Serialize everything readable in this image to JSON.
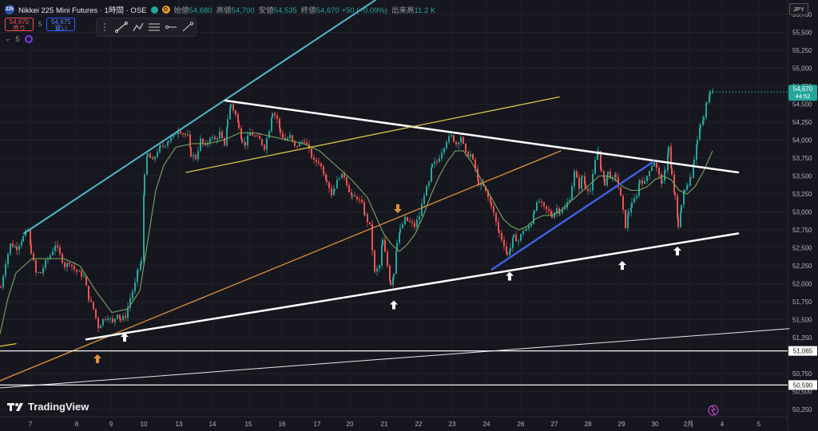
{
  "header": {
    "symbol_badge": "225",
    "title": "Nikkei 225 Mini Futures · 1時間 · OSE",
    "mode_badge": "D",
    "ohlc": [
      {
        "label": "始値",
        "value": "54,680"
      },
      {
        "label": "高値",
        "value": "54,700"
      },
      {
        "label": "安値",
        "value": "54,535"
      },
      {
        "label": "終値",
        "value": "54,670 +50 (+0.09%)"
      },
      {
        "label": "出来高",
        "value": "11.2 K"
      }
    ]
  },
  "trade": {
    "sell_price": "54,670",
    "sell_label": "売り",
    "spread": "5",
    "buy_price": "54,675",
    "buy_label": "買い"
  },
  "indicator": {
    "count": "5"
  },
  "currency": "JPY",
  "brand": "TradingView",
  "colors": {
    "background": "#16161f",
    "up": "#26a69a",
    "down": "#ef5350",
    "ma": "#7aa860",
    "cyan_line": "#4fb9c9",
    "yellow_line": "#d4c645",
    "orange_line": "#e0913a",
    "blue_line": "#3f5fe0",
    "trend_white": "#ffffff",
    "price_tag": "#26a69a"
  },
  "chart_data": {
    "type": "candlestick",
    "y_ticks": [
      "55,750",
      "55,500",
      "55,250",
      "55,000",
      "54,750",
      "54,500",
      "54,250",
      "54,000",
      "53,750",
      "53,500",
      "53,250",
      "53,000",
      "52,750",
      "52,500",
      "52,250",
      "52,000",
      "51,750",
      "51,500",
      "51,250",
      "50,750",
      "50,500",
      "50,250"
    ],
    "y_tick_values": [
      55750,
      55500,
      55250,
      55000,
      54750,
      54500,
      54250,
      54000,
      53750,
      53500,
      53250,
      53000,
      52750,
      52500,
      52250,
      52000,
      51750,
      51500,
      51250,
      50750,
      50500,
      50250
    ],
    "x_ticks": [
      "7",
      "8",
      "9",
      "10",
      "13",
      "14",
      "15",
      "16",
      "17",
      "20",
      "21",
      "22",
      "23",
      "24",
      "26",
      "27",
      "28",
      "29",
      "30",
      "2月",
      "4",
      "5"
    ],
    "ylim": [
      50150,
      55950
    ],
    "price_tag": {
      "price": "54,670",
      "countdown": "44:52",
      "value": 54670
    },
    "horizontal_levels": [
      {
        "label": "51,065",
        "value": 51065
      },
      {
        "label": "50,590",
        "value": 50590
      }
    ],
    "path": [
      [
        0,
        51950
      ],
      [
        6,
        52300
      ],
      [
        12,
        52550
      ],
      [
        20,
        52500
      ],
      [
        28,
        52650
      ],
      [
        34,
        52750
      ],
      [
        38,
        52450
      ],
      [
        44,
        52150
      ],
      [
        50,
        52150
      ],
      [
        56,
        52300
      ],
      [
        62,
        52400
      ],
      [
        68,
        52550
      ],
      [
        74,
        52400
      ],
      [
        80,
        52250
      ],
      [
        86,
        52300
      ],
      [
        92,
        52200
      ],
      [
        98,
        52150
      ],
      [
        104,
        52100
      ],
      [
        110,
        51800
      ],
      [
        116,
        51650
      ],
      [
        122,
        51400
      ],
      [
        128,
        51500
      ],
      [
        134,
        51550
      ],
      [
        140,
        51450
      ],
      [
        146,
        51600
      ],
      [
        150,
        51500
      ],
      [
        156,
        51550
      ],
      [
        162,
        51800
      ],
      [
        168,
        52000
      ],
      [
        172,
        52200
      ],
      [
        176,
        52300
      ],
      [
        180,
        53550
      ],
      [
        184,
        53800
      ],
      [
        190,
        53700
      ],
      [
        196,
        53850
      ],
      [
        200,
        53900
      ],
      [
        206,
        53950
      ],
      [
        210,
        54000
      ],
      [
        216,
        54050
      ],
      [
        222,
        54150
      ],
      [
        228,
        54100
      ],
      [
        234,
        54050
      ],
      [
        238,
        53800
      ],
      [
        244,
        53750
      ],
      [
        250,
        54000
      ],
      [
        256,
        53900
      ],
      [
        262,
        54050
      ],
      [
        268,
        54000
      ],
      [
        274,
        54100
      ],
      [
        280,
        53900
      ],
      [
        284,
        54300
      ],
      [
        288,
        54500
      ],
      [
        294,
        54350
      ],
      [
        298,
        54200
      ],
      [
        302,
        54000
      ],
      [
        306,
        53950
      ],
      [
        312,
        54100
      ],
      [
        318,
        54050
      ],
      [
        324,
        54000
      ],
      [
        330,
        53900
      ],
      [
        336,
        54150
      ],
      [
        340,
        54400
      ],
      [
        346,
        54300
      ],
      [
        350,
        54100
      ],
      [
        356,
        54000
      ],
      [
        362,
        54050
      ],
      [
        368,
        53900
      ],
      [
        374,
        53950
      ],
      [
        380,
        54000
      ],
      [
        386,
        53850
      ],
      [
        392,
        53700
      ],
      [
        398,
        53700
      ],
      [
        404,
        53550
      ],
      [
        408,
        53450
      ],
      [
        414,
        53250
      ],
      [
        418,
        53350
      ],
      [
        424,
        53500
      ],
      [
        430,
        53500
      ],
      [
        436,
        53300
      ],
      [
        440,
        53200
      ],
      [
        446,
        53200
      ],
      [
        452,
        53100
      ],
      [
        456,
        52950
      ],
      [
        462,
        52800
      ],
      [
        468,
        52150
      ],
      [
        474,
        52250
      ],
      [
        478,
        52600
      ],
      [
        484,
        52250
      ],
      [
        488,
        52000
      ],
      [
        492,
        52150
      ],
      [
        496,
        52600
      ],
      [
        500,
        52750
      ],
      [
        506,
        52900
      ],
      [
        512,
        52850
      ],
      [
        518,
        52800
      ],
      [
        524,
        52950
      ],
      [
        530,
        53250
      ],
      [
        536,
        53400
      ],
      [
        540,
        53650
      ],
      [
        546,
        53700
      ],
      [
        552,
        53850
      ],
      [
        558,
        54000
      ],
      [
        564,
        54050
      ],
      [
        570,
        53950
      ],
      [
        576,
        54050
      ],
      [
        582,
        53800
      ],
      [
        588,
        53800
      ],
      [
        594,
        53600
      ],
      [
        598,
        53400
      ],
      [
        604,
        53350
      ],
      [
        610,
        53200
      ],
      [
        614,
        53100
      ],
      [
        620,
        52850
      ],
      [
        624,
        52700
      ],
      [
        630,
        52550
      ],
      [
        634,
        52400
      ],
      [
        638,
        52500
      ],
      [
        642,
        52650
      ],
      [
        648,
        52600
      ],
      [
        654,
        52750
      ],
      [
        658,
        52750
      ],
      [
        664,
        52850
      ],
      [
        668,
        53050
      ],
      [
        674,
        53150
      ],
      [
        680,
        53050
      ],
      [
        686,
        53000
      ],
      [
        690,
        52950
      ],
      [
        696,
        53050
      ],
      [
        700,
        53000
      ],
      [
        706,
        53050
      ],
      [
        712,
        53200
      ],
      [
        718,
        53550
      ],
      [
        724,
        53350
      ],
      [
        728,
        53500
      ],
      [
        732,
        53350
      ],
      [
        738,
        53300
      ],
      [
        744,
        53700
      ],
      [
        748,
        53850
      ],
      [
        752,
        53550
      ],
      [
        756,
        53400
      ],
      [
        760,
        53550
      ],
      [
        766,
        53450
      ],
      [
        770,
        53500
      ],
      [
        776,
        53200
      ],
      [
        782,
        52800
      ],
      [
        786,
        53000
      ],
      [
        790,
        53100
      ],
      [
        796,
        53250
      ],
      [
        800,
        53450
      ],
      [
        806,
        53400
      ],
      [
        812,
        53600
      ],
      [
        818,
        53700
      ],
      [
        824,
        53500
      ],
      [
        828,
        53400
      ],
      [
        832,
        53600
      ],
      [
        836,
        53900
      ],
      [
        840,
        53500
      ],
      [
        844,
        53200
      ],
      [
        848,
        52800
      ],
      [
        852,
        53100
      ],
      [
        856,
        53300
      ],
      [
        860,
        53400
      ],
      [
        864,
        53500
      ],
      [
        868,
        53750
      ],
      [
        872,
        54000
      ],
      [
        876,
        54200
      ],
      [
        880,
        54300
      ],
      [
        884,
        54550
      ],
      [
        888,
        54700
      ],
      [
        892,
        54670
      ]
    ],
    "ma_path": [
      [
        0,
        51300
      ],
      [
        10,
        51800
      ],
      [
        20,
        52150
      ],
      [
        40,
        52350
      ],
      [
        60,
        52350
      ],
      [
        80,
        52350
      ],
      [
        100,
        52250
      ],
      [
        120,
        51900
      ],
      [
        140,
        51600
      ],
      [
        160,
        51650
      ],
      [
        175,
        51900
      ],
      [
        185,
        52600
      ],
      [
        195,
        53300
      ],
      [
        205,
        53650
      ],
      [
        220,
        53900
      ],
      [
        240,
        53950
      ],
      [
        260,
        53950
      ],
      [
        280,
        54000
      ],
      [
        300,
        54100
      ],
      [
        320,
        54100
      ],
      [
        340,
        54050
      ],
      [
        360,
        54000
      ],
      [
        380,
        53950
      ],
      [
        400,
        53850
      ],
      [
        420,
        53650
      ],
      [
        440,
        53450
      ],
      [
        460,
        53200
      ],
      [
        470,
        52950
      ],
      [
        480,
        52700
      ],
      [
        490,
        52550
      ],
      [
        500,
        52450
      ],
      [
        510,
        52550
      ],
      [
        520,
        52700
      ],
      [
        530,
        52950
      ],
      [
        540,
        53250
      ],
      [
        550,
        53500
      ],
      [
        560,
        53700
      ],
      [
        570,
        53850
      ],
      [
        580,
        53850
      ],
      [
        590,
        53700
      ],
      [
        600,
        53500
      ],
      [
        610,
        53300
      ],
      [
        620,
        53100
      ],
      [
        630,
        52900
      ],
      [
        640,
        52800
      ],
      [
        650,
        52750
      ],
      [
        660,
        52800
      ],
      [
        670,
        52900
      ],
      [
        680,
        52950
      ],
      [
        690,
        52950
      ],
      [
        700,
        53000
      ],
      [
        710,
        53100
      ],
      [
        720,
        53200
      ],
      [
        730,
        53300
      ],
      [
        740,
        53400
      ],
      [
        750,
        53500
      ],
      [
        760,
        53500
      ],
      [
        770,
        53450
      ],
      [
        780,
        53350
      ],
      [
        790,
        53300
      ],
      [
        800,
        53300
      ],
      [
        810,
        53350
      ],
      [
        820,
        53450
      ],
      [
        830,
        53500
      ],
      [
        840,
        53450
      ],
      [
        850,
        53300
      ],
      [
        860,
        53250
      ],
      [
        870,
        53350
      ],
      [
        880,
        53550
      ],
      [
        892,
        53850
      ]
    ],
    "drawings": [
      {
        "color": "cyan",
        "x1": 30,
        "y1": 52700,
        "x2": 470,
        "y2": 55950,
        "width": 2
      },
      {
        "color": "white",
        "x1": 282,
        "y1": 54550,
        "x2": 924,
        "y2": 53550,
        "width": 2.5
      },
      {
        "color": "yellow",
        "x1": 233,
        "y1": 53550,
        "x2": 700,
        "y2": 54600,
        "width": 1.3
      },
      {
        "color": "orange",
        "x1": 0,
        "y1": 50650,
        "x2": 702,
        "y2": 53850,
        "width": 1.3
      },
      {
        "color": "white",
        "x1": 108,
        "y1": 51225,
        "x2": 924,
        "y2": 52700,
        "width": 2.5
      },
      {
        "color": "blue",
        "x1": 616,
        "y1": 52200,
        "x2": 818,
        "y2": 53700,
        "width": 2.5
      },
      {
        "color": "white_thin",
        "x1": 0,
        "y1": 50550,
        "x2": 988,
        "y2": 51375,
        "width": 1
      },
      {
        "color": "yellow",
        "x1": 0,
        "y1": 51130,
        "x2": 20,
        "y2": 51165,
        "width": 1.3
      }
    ],
    "arrows": [
      {
        "color": "white",
        "dir": "up",
        "x": 156,
        "y": 51250
      },
      {
        "color": "orange",
        "dir": "up",
        "x": 122,
        "y": 50950
      },
      {
        "color": "orange",
        "dir": "down",
        "x": 498,
        "y": 53050
      },
      {
        "color": "white",
        "dir": "up",
        "x": 493,
        "y": 51700
      },
      {
        "color": "white",
        "dir": "up",
        "x": 638,
        "y": 52100
      },
      {
        "color": "white",
        "dir": "up",
        "x": 779,
        "y": 52250
      },
      {
        "color": "white",
        "dir": "up",
        "x": 848,
        "y": 52450
      }
    ]
  }
}
